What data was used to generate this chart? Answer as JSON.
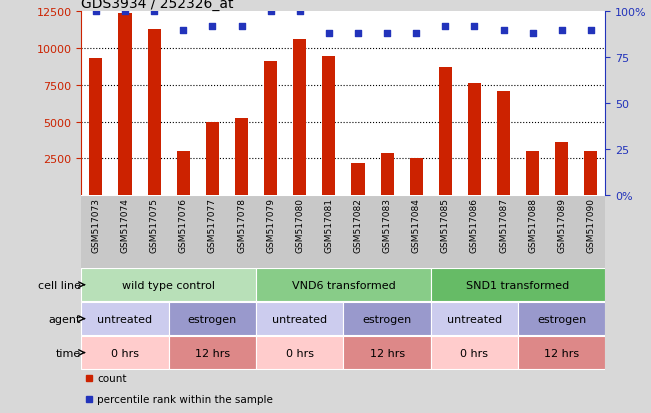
{
  "title": "GDS3934 / 252326_at",
  "samples": [
    "GSM517073",
    "GSM517074",
    "GSM517075",
    "GSM517076",
    "GSM517077",
    "GSM517078",
    "GSM517079",
    "GSM517080",
    "GSM517081",
    "GSM517082",
    "GSM517083",
    "GSM517084",
    "GSM517085",
    "GSM517086",
    "GSM517087",
    "GSM517088",
    "GSM517089",
    "GSM517090"
  ],
  "bar_values": [
    9300,
    12400,
    11300,
    3000,
    4950,
    5250,
    9100,
    10600,
    9500,
    2200,
    2900,
    2500,
    8700,
    7600,
    7100,
    3000,
    3600,
    3000
  ],
  "dot_values": [
    100,
    100,
    100,
    90,
    92,
    92,
    100,
    100,
    88,
    88,
    88,
    88,
    92,
    92,
    90,
    88,
    90,
    90
  ],
  "bar_color": "#cc2200",
  "dot_color": "#2233bb",
  "ylim_left": [
    0,
    12500
  ],
  "ylim_right": [
    0,
    100
  ],
  "yticks_left": [
    2500,
    5000,
    7500,
    10000,
    12500
  ],
  "yticks_right": [
    0,
    25,
    50,
    75,
    100
  ],
  "cell_line_data": [
    {
      "label": "wild type control",
      "start": 0,
      "end": 6,
      "color": "#b8e0b8"
    },
    {
      "label": "VND6 transformed",
      "start": 6,
      "end": 12,
      "color": "#88cc88"
    },
    {
      "label": "SND1 transformed",
      "start": 12,
      "end": 18,
      "color": "#66bb66"
    }
  ],
  "agent_data": [
    {
      "label": "untreated",
      "start": 0,
      "end": 3,
      "color": "#ccccee"
    },
    {
      "label": "estrogen",
      "start": 3,
      "end": 6,
      "color": "#9999cc"
    },
    {
      "label": "untreated",
      "start": 6,
      "end": 9,
      "color": "#ccccee"
    },
    {
      "label": "estrogen",
      "start": 9,
      "end": 12,
      "color": "#9999cc"
    },
    {
      "label": "untreated",
      "start": 12,
      "end": 15,
      "color": "#ccccee"
    },
    {
      "label": "estrogen",
      "start": 15,
      "end": 18,
      "color": "#9999cc"
    }
  ],
  "time_data": [
    {
      "label": "0 hrs",
      "start": 0,
      "end": 3,
      "color": "#ffcccc"
    },
    {
      "label": "12 hrs",
      "start": 3,
      "end": 6,
      "color": "#dd8888"
    },
    {
      "label": "0 hrs",
      "start": 6,
      "end": 9,
      "color": "#ffcccc"
    },
    {
      "label": "12 hrs",
      "start": 9,
      "end": 12,
      "color": "#dd8888"
    },
    {
      "label": "0 hrs",
      "start": 12,
      "end": 15,
      "color": "#ffcccc"
    },
    {
      "label": "12 hrs",
      "start": 15,
      "end": 18,
      "color": "#dd8888"
    }
  ],
  "row_labels": [
    "cell line",
    "agent",
    "time"
  ],
  "legend_items": [
    {
      "color": "#cc2200",
      "label": "count"
    },
    {
      "color": "#2233bb",
      "label": "percentile rank within the sample"
    }
  ],
  "background_color": "#d8d8d8",
  "names_bg_color": "#c8c8c8",
  "plot_bg_color": "#ffffff",
  "grid_color": "#000000",
  "left_ax_color": "#cc2200",
  "right_ax_color": "#2233bb"
}
